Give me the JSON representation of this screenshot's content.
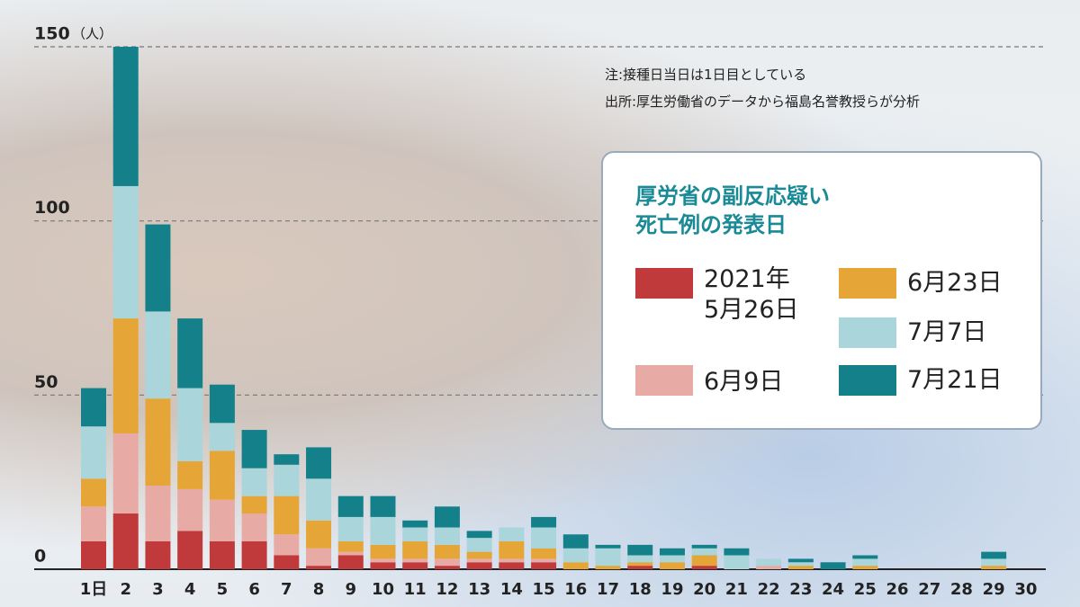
{
  "chart_data": {
    "type": "stacked_bar",
    "y_unit": "（人）",
    "notes": [
      "注:接種日当日は1日目としている",
      "出所:厚生労働省のデータから福島名誉教授らが分析"
    ],
    "legend_title": [
      "厚労省の副反応疑い",
      "死亡例の発表日"
    ],
    "categories": [
      "1日",
      "2",
      "3",
      "4",
      "5",
      "6",
      "7",
      "8",
      "9",
      "10",
      "11",
      "12",
      "13",
      "14",
      "15",
      "16",
      "17",
      "18",
      "19",
      "20",
      "21",
      "22",
      "23",
      "24",
      "25",
      "26",
      "27",
      "28",
      "29",
      "30"
    ],
    "series": [
      {
        "name": "2021年\n5月26日",
        "color": "#c0393b",
        "values": [
          8,
          16,
          8,
          11,
          8,
          8,
          4,
          1,
          4,
          2,
          2,
          1,
          2,
          2,
          2,
          0,
          0,
          1,
          0,
          1,
          0,
          0,
          0,
          0,
          0,
          0,
          0,
          0,
          0,
          0
        ]
      },
      {
        "name": "6月9日",
        "color": "#e8aaa4",
        "values": [
          10,
          23,
          16,
          12,
          12,
          8,
          6,
          5,
          1,
          1,
          1,
          2,
          1,
          1,
          1,
          0,
          0,
          0,
          0,
          0,
          0,
          1,
          0,
          0,
          0,
          0,
          0,
          0,
          0,
          0
        ]
      },
      {
        "name": "6月23日",
        "color": "#e5a637",
        "values": [
          8,
          33,
          25,
          8,
          14,
          5,
          11,
          8,
          3,
          4,
          5,
          4,
          2,
          5,
          3,
          2,
          1,
          1,
          2,
          3,
          0,
          0,
          1,
          0,
          1,
          0,
          0,
          0,
          1,
          0
        ]
      },
      {
        "name": "7月7日",
        "color": "#a9d5db",
        "values": [
          15,
          38,
          25,
          21,
          8,
          8,
          9,
          12,
          7,
          8,
          4,
          5,
          4,
          4,
          6,
          4,
          5,
          2,
          2,
          2,
          4,
          2,
          1,
          0,
          2,
          0,
          0,
          0,
          2,
          0
        ]
      },
      {
        "name": "7月21日",
        "color": "#14808a",
        "values": [
          11,
          40,
          25,
          20,
          11,
          11,
          3,
          9,
          6,
          6,
          2,
          6,
          2,
          0,
          3,
          4,
          1,
          3,
          2,
          1,
          2,
          0,
          1,
          2,
          1,
          0,
          0,
          0,
          2,
          0
        ]
      }
    ],
    "ylim": [
      0,
      150
    ],
    "yticks": [
      0,
      50,
      100,
      150
    ],
    "grid": true,
    "legend": "upper-right"
  }
}
